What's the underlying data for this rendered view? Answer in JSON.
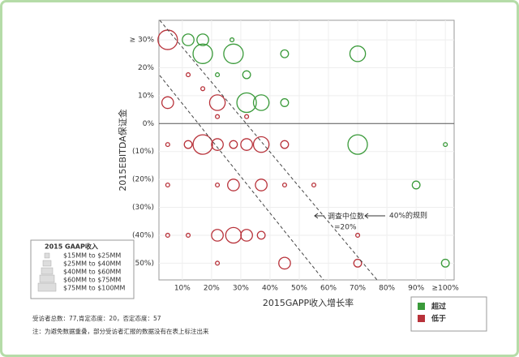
{
  "chart_data": {
    "type": "scatter",
    "xlabel": "2015GAPP收入增长率",
    "ylabel": "2015EBITDA保证金",
    "xlim": [
      2,
      103
    ],
    "ylim": [
      -56,
      37
    ],
    "xticks": [
      {
        "value": 10,
        "label": "10%"
      },
      {
        "value": 20,
        "label": "20%"
      },
      {
        "value": 30,
        "label": "30%"
      },
      {
        "value": 40,
        "label": "40%"
      },
      {
        "value": 50,
        "label": "50%"
      },
      {
        "value": 60,
        "label": "60%"
      },
      {
        "value": 70,
        "label": "70%"
      },
      {
        "value": 80,
        "label": "80%"
      },
      {
        "value": 90,
        "label": "90%"
      },
      {
        "value": 100,
        "label": "≥100%"
      }
    ],
    "yticks": [
      {
        "value": 30,
        "label": "≥ 30%"
      },
      {
        "value": 20,
        "label": "20%"
      },
      {
        "value": 10,
        "label": "10%"
      },
      {
        "value": 0,
        "label": "0%"
      },
      {
        "value": -10,
        "label": "(10%)"
      },
      {
        "value": -20,
        "label": "(20%)"
      },
      {
        "value": -30,
        "label": "(30%)"
      },
      {
        "value": -40,
        "label": "(40%)"
      },
      {
        "value": -50,
        "label": "(50%)"
      }
    ],
    "grid": true,
    "series": [
      {
        "name": "超过",
        "color": "#3a9a3a",
        "x": [
          12,
          17,
          27,
          17,
          27.5,
          45,
          70,
          22,
          32,
          32,
          37,
          45,
          70,
          100,
          90,
          100
        ],
        "y": [
          30,
          30,
          30,
          25,
          25,
          25,
          25,
          17.5,
          17.5,
          7.5,
          7.5,
          7.5,
          -7.5,
          -7.5,
          -22,
          -50
        ],
        "sizes": [
          3,
          3,
          1,
          5,
          5,
          2,
          4,
          1,
          2,
          5,
          4,
          2,
          5,
          1,
          2,
          2
        ]
      },
      {
        "name": "低于",
        "color": "#b8323a",
        "x": [
          5,
          5,
          12,
          17,
          22,
          22,
          32,
          5,
          12,
          17,
          22,
          27.5,
          32,
          37,
          45,
          5,
          22,
          27.5,
          37,
          45,
          55,
          5,
          12,
          22,
          27.5,
          32,
          37,
          70,
          22,
          45,
          70
        ],
        "y": [
          30,
          7.5,
          17.5,
          12.5,
          7.5,
          2.5,
          2.5,
          -7.5,
          -7.5,
          -7.5,
          -7.5,
          -7.5,
          -7.5,
          -7.5,
          -7.5,
          -22,
          -22,
          -22,
          -22,
          -22,
          -22,
          -40,
          -40,
          -40,
          -40,
          -40,
          -40,
          -40,
          -50,
          -50,
          -50
        ],
        "sizes": [
          5,
          3,
          1,
          1,
          4,
          1,
          1,
          1,
          2,
          5,
          3,
          2,
          3,
          4,
          2,
          1,
          1,
          3,
          3,
          1,
          1,
          1,
          1,
          3,
          4,
          3,
          2,
          1,
          1,
          3,
          2
        ]
      }
    ],
    "annotations": [
      "调查中位数",
      "=20%",
      "40%的规则"
    ],
    "size_legend": {
      "title": "2015 GAAP收入",
      "labels": [
        "$15MM to $25MM",
        "$25MM to $40MM",
        "$40MM to $60MM",
        "$60MM to $75MM",
        "$75MM to $100MM"
      ]
    },
    "notes": [
      "受访者总数：77,肯定态度：20，否定态度：57",
      "注：为避免数据重叠，部分受访者汇报的数据没有在表上标注出来"
    ]
  }
}
